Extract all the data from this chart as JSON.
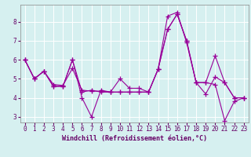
{
  "title": "",
  "xlabel": "Windchill (Refroidissement éolien,°C)",
  "ylabel": "",
  "bg_color": "#d6f0f0",
  "grid_color": "#ffffff",
  "line_color": "#990099",
  "xlim": [
    -0.5,
    23.5
  ],
  "ylim": [
    2.7,
    8.9
  ],
  "xticks": [
    0,
    1,
    2,
    3,
    4,
    5,
    6,
    7,
    8,
    9,
    10,
    11,
    12,
    13,
    14,
    15,
    16,
    17,
    18,
    19,
    20,
    21,
    22,
    23
  ],
  "yticks": [
    3,
    4,
    5,
    6,
    7,
    8
  ],
  "line1": [
    6.0,
    5.0,
    5.4,
    4.6,
    4.6,
    6.0,
    4.0,
    3.0,
    4.4,
    4.3,
    5.0,
    4.5,
    4.5,
    4.3,
    5.5,
    8.3,
    8.5,
    6.9,
    4.8,
    4.8,
    4.7,
    2.8,
    3.8,
    4.0
  ],
  "line2": [
    6.0,
    5.0,
    5.4,
    4.6,
    4.6,
    6.0,
    4.3,
    4.4,
    4.3,
    4.3,
    4.3,
    4.3,
    4.3,
    4.3,
    5.5,
    7.6,
    8.4,
    7.0,
    4.8,
    4.8,
    6.2,
    4.8,
    4.0,
    4.0
  ],
  "line3": [
    6.0,
    5.0,
    5.4,
    4.7,
    4.65,
    5.55,
    4.4,
    4.35,
    4.35,
    4.3,
    4.3,
    4.3,
    4.3,
    4.3,
    5.5,
    7.6,
    8.4,
    7.0,
    4.8,
    4.2,
    5.1,
    4.8,
    4.0,
    4.0
  ],
  "marker": "+",
  "markersize": 4,
  "linewidth": 0.8,
  "xlabel_fontsize": 6.0,
  "tick_fontsize": 5.5,
  "xlabel_color": "#660066",
  "tick_color": "#660066"
}
